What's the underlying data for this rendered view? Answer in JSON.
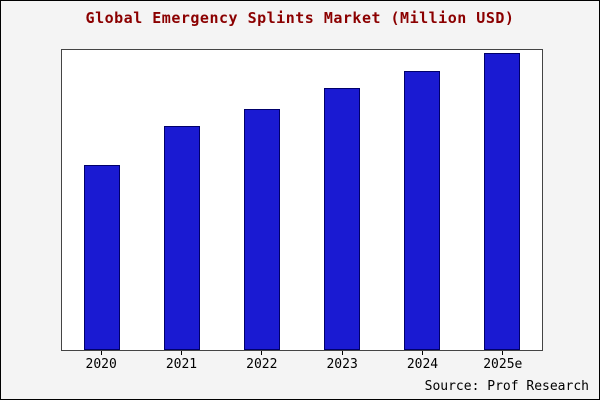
{
  "title": "Global Emergency Splints Market (Million USD)",
  "source": "Source: Prof Research",
  "colors": {
    "bar_fill": "#1a1ad2",
    "bar_border": "#00006b",
    "title_text": "#8b0000",
    "outer_background": "#f4f4f4",
    "plot_background": "#ffffff"
  },
  "chart_data": {
    "type": "bar",
    "categories": [
      "2020",
      "2021",
      "2022",
      "2023",
      "2024",
      "2025e"
    ],
    "values": [
      63,
      76,
      82,
      89,
      95,
      101
    ],
    "title": "Global Emergency Splints Market (Million USD)",
    "xlabel": "",
    "ylabel": "",
    "ylim": [
      0,
      102
    ],
    "grid": false,
    "legend": false,
    "y_axis_ticks_visible": false,
    "annotation": "Source: Prof Research"
  }
}
